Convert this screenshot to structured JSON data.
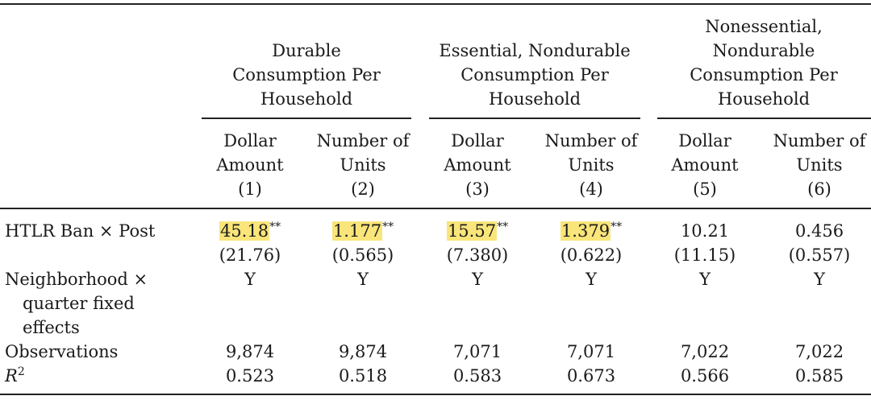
{
  "groups": [
    {
      "lines": [
        "Durable",
        "Consumption Per",
        "Household"
      ]
    },
    {
      "lines": [
        "Essential, Nondurable",
        "Consumption Per",
        "Household"
      ]
    },
    {
      "lines": [
        "Nonessential,",
        "Nondurable",
        "Consumption Per",
        "Household"
      ]
    }
  ],
  "columns": [
    {
      "lines": [
        "Dollar",
        "Amount",
        "(1)"
      ]
    },
    {
      "lines": [
        "Number of",
        "Units",
        "(2)"
      ]
    },
    {
      "lines": [
        "Dollar",
        "Amount",
        "(3)"
      ]
    },
    {
      "lines": [
        "Number of",
        "Units",
        "(4)"
      ]
    },
    {
      "lines": [
        "Dollar",
        "Amount",
        "(5)"
      ]
    },
    {
      "lines": [
        "Number of",
        "Units",
        "(6)"
      ]
    }
  ],
  "rows": {
    "htlr": {
      "label": "HTLR Ban × Post",
      "coefs": [
        "45.18",
        "1.177",
        "15.57",
        "1.379",
        "10.21",
        "0.456"
      ],
      "stars": [
        "**",
        "**",
        "**",
        "**",
        "",
        ""
      ],
      "highlighted": [
        true,
        true,
        true,
        true,
        false,
        false
      ],
      "ses": [
        "(21.76)",
        "(0.565)",
        "(7.380)",
        "(0.622)",
        "(11.15)",
        "(0.557)"
      ]
    },
    "fe": {
      "label_lines": [
        "Neighborhood ×",
        "quarter fixed",
        "effects"
      ],
      "values": [
        "Y",
        "Y",
        "Y",
        "Y",
        "Y",
        "Y"
      ]
    },
    "obs": {
      "label": "Observations",
      "values": [
        "9,874",
        "9,874",
        "7,071",
        "7,071",
        "7,022",
        "7,022"
      ]
    },
    "r2": {
      "label": "R",
      "label_sup": "2",
      "values": [
        "0.523",
        "0.518",
        "0.583",
        "0.673",
        "0.566",
        "0.585"
      ]
    }
  },
  "highlight_color": "#f9e57a"
}
